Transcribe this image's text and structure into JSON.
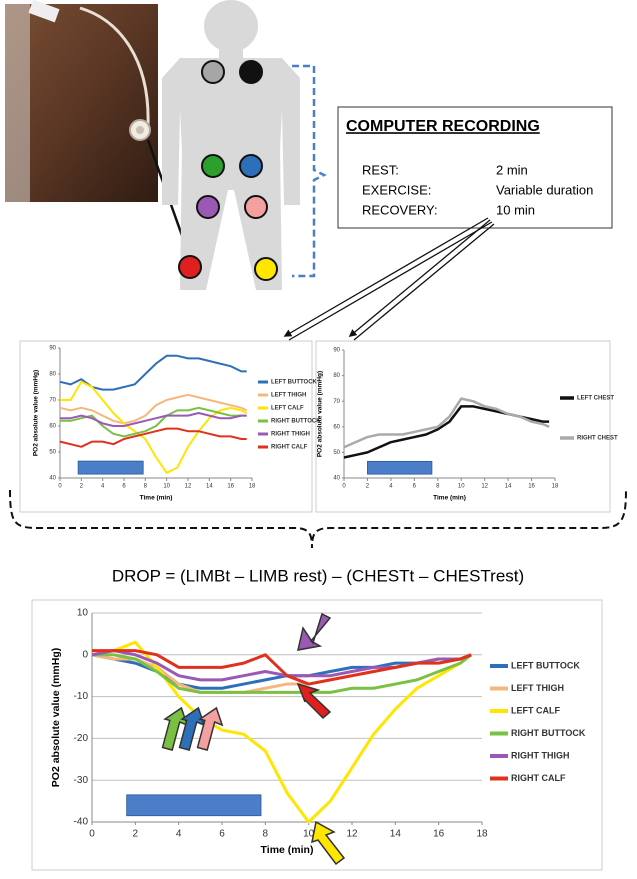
{
  "recording_box": {
    "title": "COMPUTER RECORDING",
    "rows": [
      [
        "REST:",
        "2 min"
      ],
      [
        "EXERCISE:",
        "Variable duration"
      ],
      [
        "RECOVERY:",
        "10 min"
      ]
    ]
  },
  "formula": "DROP = (LIMBt – LIMB rest) – (CHESTt – CHESTrest)",
  "chart_data": [
    {
      "type": "line",
      "xlabel": "Time (min)",
      "ylabel": "PO2 absolute value (mmHg)",
      "x": [
        0,
        1,
        2,
        3,
        4,
        5,
        6,
        7,
        8,
        9,
        10,
        11,
        12,
        13,
        14,
        15,
        16,
        17,
        17.5
      ],
      "xlim": [
        0,
        18
      ],
      "xticks": [
        0,
        2,
        4,
        6,
        8,
        10,
        12,
        14,
        16,
        18
      ],
      "ylim": [
        40,
        90
      ],
      "yticks": [
        40,
        50,
        60,
        70,
        80,
        90
      ],
      "grid": false,
      "legend": "right",
      "exercise": [
        1.7,
        7.8
      ],
      "exercise_color": "#4a7ec9",
      "series": [
        {
          "name": "LEFT BUTTOCK",
          "color": "#2e6fba",
          "values": [
            77,
            76,
            78,
            75,
            74,
            74,
            75,
            76,
            80,
            84,
            87,
            87,
            86,
            86,
            85,
            84,
            83,
            81,
            81
          ]
        },
        {
          "name": "LEFT THIGH",
          "color": "#f5b77f",
          "values": [
            67,
            66,
            67,
            66,
            64,
            62,
            61,
            62,
            64,
            68,
            70,
            71,
            72,
            71,
            70,
            69,
            68,
            67,
            66
          ]
        },
        {
          "name": "LEFT CALF",
          "color": "#ffe600",
          "values": [
            70,
            70,
            77,
            75,
            70,
            65,
            61,
            58,
            55,
            48,
            42,
            44,
            52,
            58,
            63,
            66,
            67,
            66,
            65
          ]
        },
        {
          "name": "RIGHT BUTTOCK",
          "color": "#7ac143",
          "values": [
            62,
            62,
            63,
            64,
            60,
            57,
            56,
            57,
            58,
            60,
            64,
            66,
            66,
            67,
            66,
            65,
            64,
            64,
            64
          ]
        },
        {
          "name": "RIGHT THIGH",
          "color": "#9b59b6",
          "values": [
            63,
            63,
            64,
            63,
            61,
            60,
            60,
            61,
            62,
            63,
            64,
            64,
            64,
            65,
            64,
            63,
            63,
            64,
            64
          ]
        },
        {
          "name": "RIGHT CALF",
          "color": "#e0301e",
          "values": [
            54,
            53,
            52,
            54,
            54,
            53,
            55,
            56,
            57,
            58,
            59,
            59,
            58,
            58,
            57,
            56,
            56,
            55,
            55
          ]
        }
      ]
    },
    {
      "type": "line",
      "xlabel": "Time (min)",
      "ylabel": "PO2 absolute value (mmHg)",
      "x": [
        0,
        1,
        2,
        3,
        4,
        5,
        6,
        7,
        8,
        9,
        10,
        11,
        12,
        13,
        14,
        15,
        16,
        17,
        17.5
      ],
      "xlim": [
        0,
        18
      ],
      "xticks": [
        0,
        2,
        4,
        6,
        8,
        10,
        12,
        14,
        16,
        18
      ],
      "ylim": [
        40,
        90
      ],
      "yticks": [
        40,
        50,
        60,
        70,
        80,
        90
      ],
      "grid": false,
      "legend": "right",
      "exercise": [
        2,
        7.5
      ],
      "exercise_color": "#4a7ec9",
      "series": [
        {
          "name": "LEFT CHEST",
          "color": "#111111",
          "values": [
            48,
            49,
            50,
            52,
            54,
            55,
            56,
            57,
            59,
            62,
            68,
            68,
            67,
            66,
            65,
            64,
            63,
            62,
            62
          ]
        },
        {
          "name": "RIGHT CHEST",
          "color": "#aaaaaa",
          "values": [
            52,
            54,
            56,
            57,
            57,
            57,
            58,
            59,
            60,
            64,
            71,
            70,
            68,
            67,
            65,
            64,
            62,
            61,
            60
          ]
        }
      ]
    },
    {
      "type": "line",
      "xlabel": "Time (min)",
      "ylabel": "PO2 absolute value (mmHg)",
      "x": [
        0,
        1,
        2,
        3,
        4,
        5,
        6,
        7,
        8,
        9,
        10,
        11,
        12,
        13,
        14,
        15,
        16,
        17,
        17.5
      ],
      "xlim": [
        0,
        18
      ],
      "xticks": [
        0,
        2,
        4,
        6,
        8,
        10,
        12,
        14,
        16,
        18
      ],
      "ylim": [
        -40,
        10
      ],
      "yticks": [
        -40,
        -30,
        -20,
        -10,
        0,
        10
      ],
      "grid": true,
      "legend": "right",
      "exercise": [
        1.6,
        7.8
      ],
      "exercise_color": "#4a7ec9",
      "series": [
        {
          "name": "LEFT BUTTOCK",
          "color": "#2e6fba",
          "values": [
            0,
            -1,
            -2,
            -4,
            -7,
            -8,
            -8,
            -7,
            -6,
            -5,
            -5,
            -4,
            -3,
            -3,
            -2,
            -2,
            -1,
            -1,
            0
          ]
        },
        {
          "name": "LEFT THIGH",
          "color": "#f5b77f",
          "values": [
            0,
            -1,
            -1,
            -3,
            -7,
            -9,
            -9,
            -9,
            -8,
            -7,
            -7,
            -6,
            -5,
            -4,
            -3,
            -2,
            -1,
            -1,
            0
          ]
        },
        {
          "name": "LEFT CALF",
          "color": "#ffe600",
          "values": [
            0,
            1,
            3,
            -3,
            -10,
            -15,
            -18,
            -19,
            -23,
            -33,
            -40,
            -35,
            -27,
            -19,
            -13,
            -8,
            -5,
            -2,
            0
          ]
        },
        {
          "name": "RIGHT BUTTOCK",
          "color": "#7ac143",
          "values": [
            0,
            0,
            -1,
            -4,
            -8,
            -9,
            -9,
            -9,
            -9,
            -9,
            -9,
            -9,
            -8,
            -8,
            -7,
            -6,
            -4,
            -2,
            0
          ]
        },
        {
          "name": "RIGHT THIGH",
          "color": "#9b59b6",
          "values": [
            0,
            1,
            0,
            -2,
            -5,
            -6,
            -6,
            -5,
            -4,
            -5,
            -5,
            -5,
            -4,
            -3,
            -3,
            -2,
            -1,
            -1,
            0
          ]
        },
        {
          "name": "RIGHT CALF",
          "color": "#e0301e",
          "values": [
            1,
            1,
            1,
            0,
            -3,
            -3,
            -3,
            -2,
            0,
            -5,
            -7,
            -6,
            -5,
            -4,
            -3,
            -2,
            -2,
            -1,
            0
          ]
        }
      ]
    }
  ]
}
